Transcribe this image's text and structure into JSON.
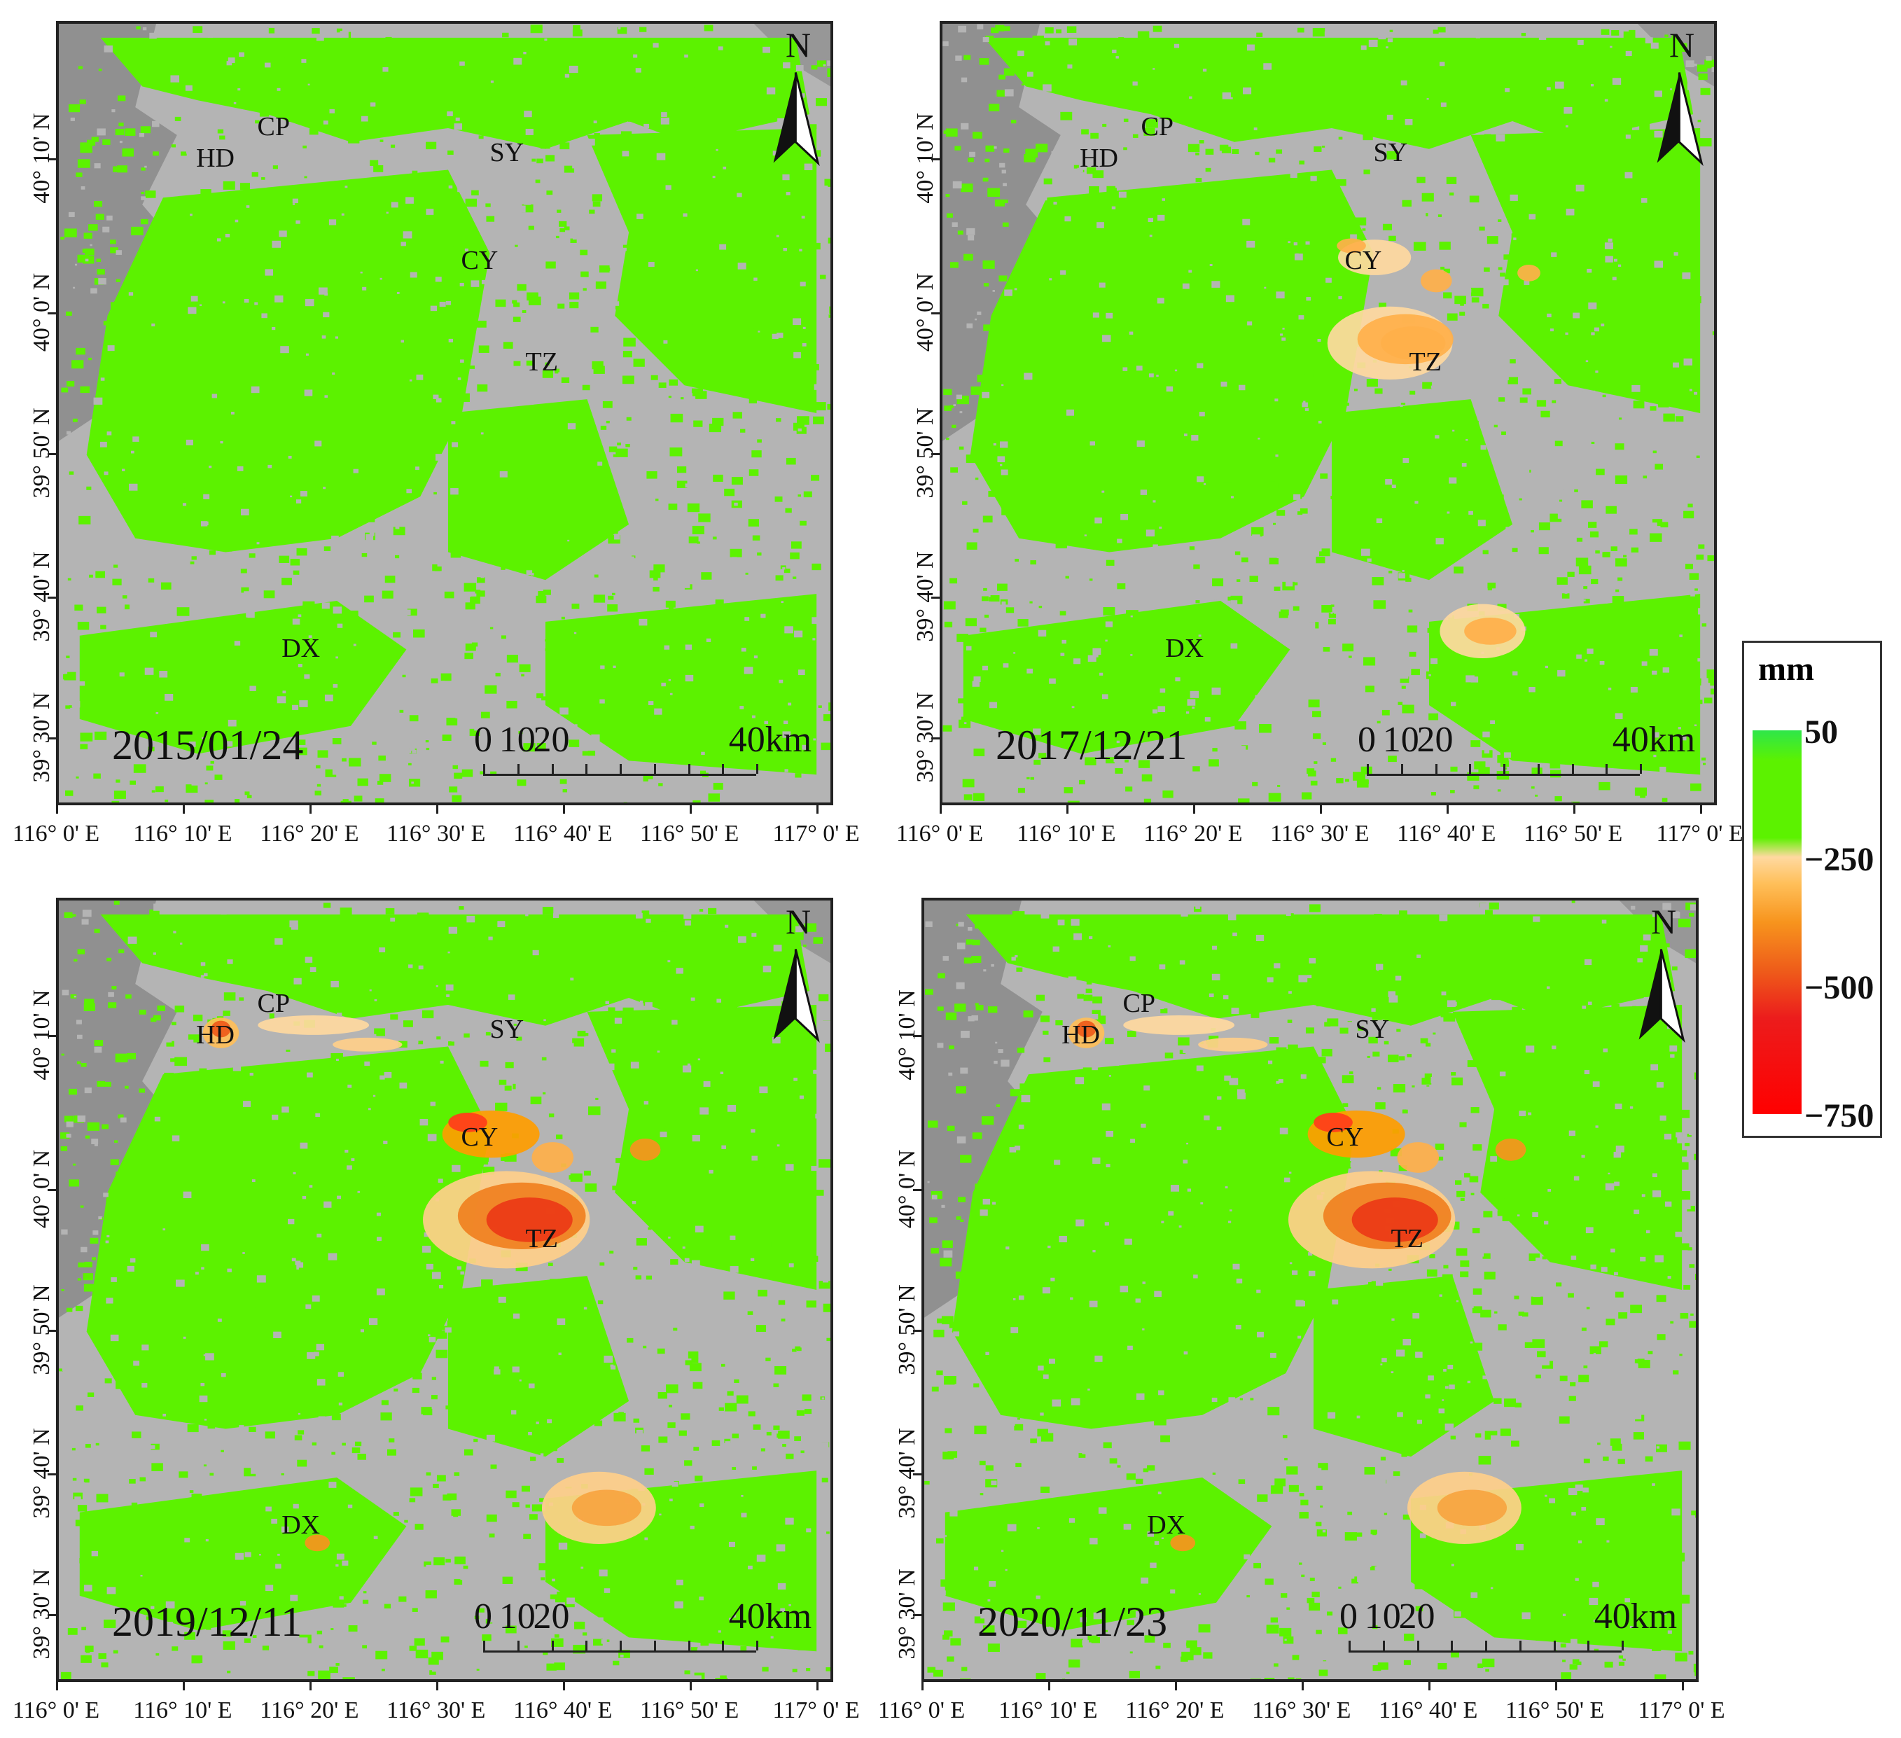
{
  "lon_labels": [
    "116° 0' E",
    "116° 10' E",
    "116° 20' E",
    "116° 30' E",
    "116° 40' E",
    "116° 50' E",
    "117° 0' E"
  ],
  "lat_labels": [
    "40° 10' N",
    "40° 0' N",
    "39° 50' N",
    "39° 40' N",
    "39° 30' N"
  ],
  "places": [
    "HD",
    "CP",
    "SY",
    "CY",
    "TZ",
    "DX"
  ],
  "north_label": "N",
  "scale": {
    "labels": [
      "0",
      "10",
      "20",
      "40km"
    ]
  },
  "panels": [
    {
      "date": "2015/01/24",
      "subsidence_zones": []
    },
    {
      "date": "2017/12/21",
      "subsidence_zones": [
        "CY",
        "TZ",
        "southeast"
      ]
    },
    {
      "date": "2019/12/11",
      "subsidence_zones": [
        "HD",
        "CP",
        "CY",
        "TZ",
        "southeast",
        "DX"
      ]
    },
    {
      "date": "2020/11/23",
      "subsidence_zones": [
        "HD",
        "CP",
        "CY",
        "TZ",
        "southeast",
        "DX"
      ]
    }
  ],
  "legend": {
    "unit": "mm",
    "values": [
      "50",
      "−250",
      "−500",
      "−750"
    ],
    "colors": {
      "max": "#2ee64a",
      "stable": "#5cf200",
      "mid": "#ffbf59",
      "min": "#ff0000"
    }
  },
  "colors": {
    "stable": "#5cf200",
    "background": "#b4b4b4",
    "terrain": "#8a8a8a"
  }
}
